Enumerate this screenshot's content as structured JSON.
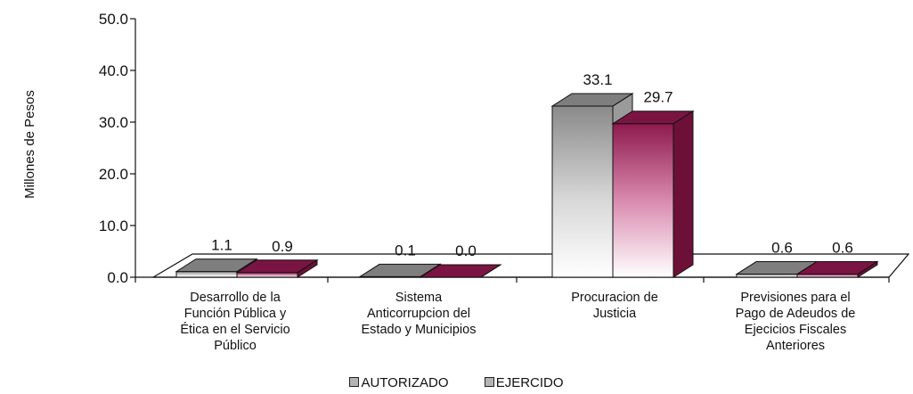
{
  "chart_data": {
    "type": "bar",
    "title": "",
    "xlabel": "",
    "ylabel": "Millones de Pesos",
    "ylim": [
      0,
      50
    ],
    "yticks": [
      "0.0",
      "10.0",
      "20.0",
      "30.0",
      "40.0",
      "50.0"
    ],
    "categories": [
      [
        "Desarrollo de la",
        "Función Pública y",
        "Ética en el Servicio",
        "Público"
      ],
      [
        "Sistema",
        "Anticorrupcion del",
        "Estado y Municipios"
      ],
      [
        "Procuracion de",
        "Justicia"
      ],
      [
        "Previsiones para el",
        "Pago de Adeudos de",
        "Ejecicios Fiscales",
        "Anteriores"
      ]
    ],
    "series": [
      {
        "name": "AUTORIZADO",
        "values": [
          1.1,
          0.1,
          33.1,
          0.6
        ],
        "labels": [
          "1.1",
          "0.1",
          "33.1",
          "0.6"
        ]
      },
      {
        "name": "EJERCIDO",
        "values": [
          0.9,
          0.0,
          29.7,
          0.6
        ],
        "labels": [
          "0.9",
          "0.0",
          "29.7",
          "0.6"
        ]
      }
    ],
    "legend_position": "bottom",
    "colors": {
      "autorizado": "#b4b4b4",
      "ejercido": "#8e1a4e",
      "floor": "#ffffff",
      "axis": "#111111"
    }
  }
}
